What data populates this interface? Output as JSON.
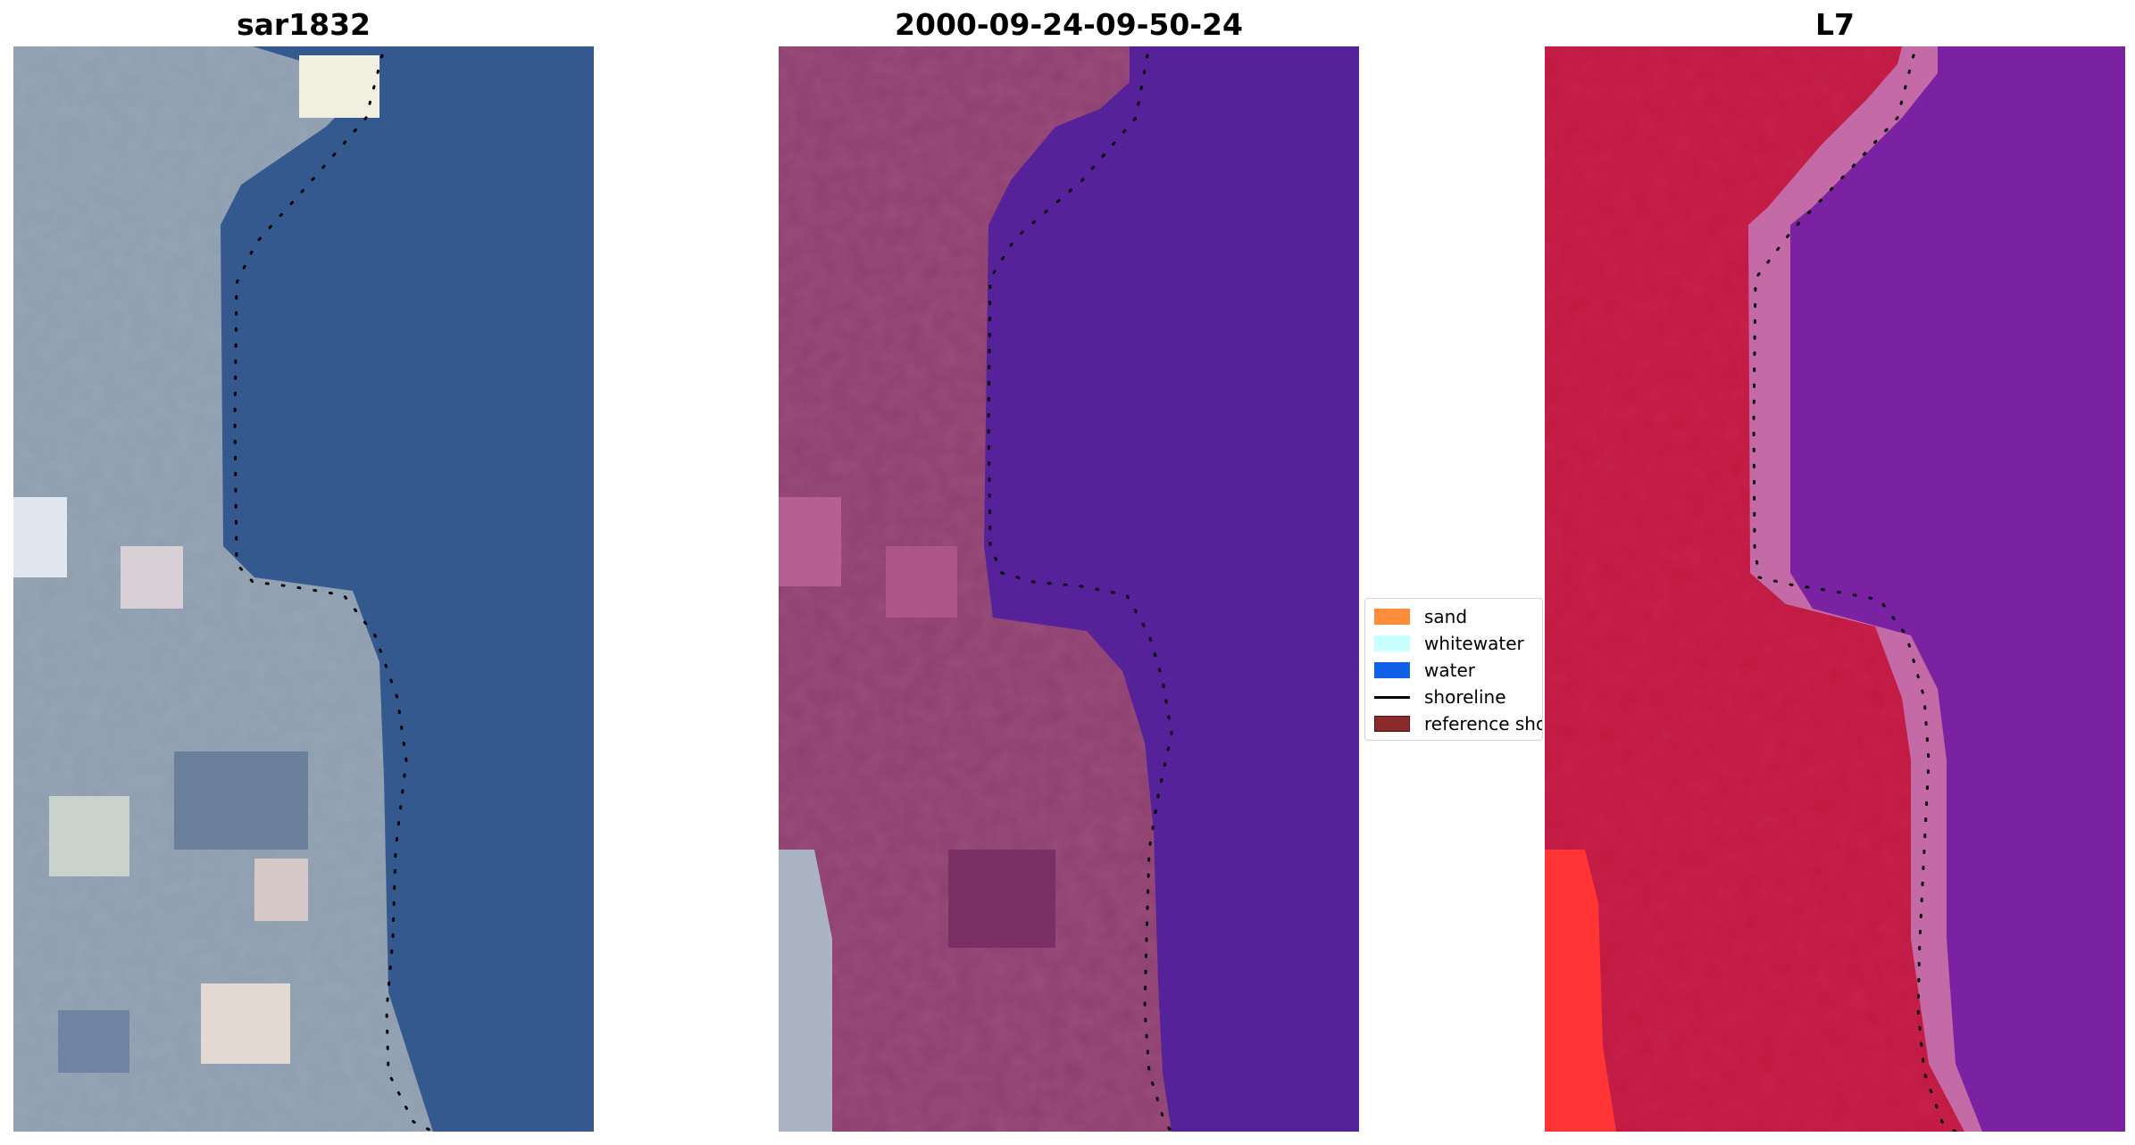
{
  "panels": [
    {
      "title": "sar1832"
    },
    {
      "title": "2000-09-24-09-50-24"
    },
    {
      "title": "L7"
    }
  ],
  "legend": {
    "items": [
      {
        "label": "sand",
        "color": "#ff8c3a",
        "kind": "patch"
      },
      {
        "label": "whitewater",
        "color": "#c8ffff",
        "kind": "patch"
      },
      {
        "label": "water",
        "color": "#1060e8",
        "kind": "patch"
      },
      {
        "label": "shoreline",
        "color": "#000000",
        "kind": "line"
      },
      {
        "label": "reference shoreline",
        "color": "#8b2a2a",
        "kind": "patch"
      }
    ]
  },
  "colors": {
    "water_true_color": "#34598f",
    "land_true_color": "#8e9eaf",
    "water_classified": "#56229a",
    "land_classified": "#8c3f6e",
    "water_false_color": "#7a22a2",
    "land_false_color": "#c01840",
    "shoreline_marker": "#000000"
  }
}
